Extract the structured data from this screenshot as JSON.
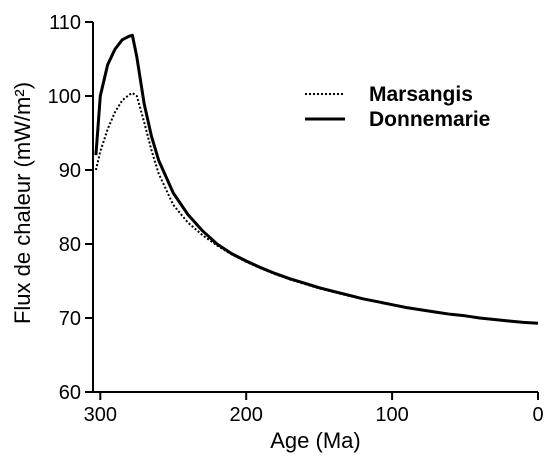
{
  "chart_data": {
    "type": "line",
    "xlabel": "Age (Ma)",
    "ylabel": "Flux de chaleur (mW/m²)",
    "xlim": [
      305,
      0
    ],
    "ylim": [
      60,
      110
    ],
    "x_ticks": [
      300,
      200,
      100,
      0
    ],
    "x_tick_labels": [
      "300",
      "200",
      "100",
      "0"
    ],
    "y_ticks": [
      60,
      70,
      80,
      90,
      100,
      110
    ],
    "y_tick_labels": [
      "60",
      "70",
      "80",
      "90",
      "100",
      "110"
    ],
    "grid": false,
    "legend_position": "top-right",
    "series": [
      {
        "name": "Marsangis",
        "line_style": "dotted",
        "color": "#000000",
        "x": [
          303,
          300,
          295,
          290,
          285,
          280,
          278,
          275,
          270,
          265,
          260,
          250,
          240,
          230,
          220,
          210,
          200,
          190,
          180,
          170,
          160,
          150,
          140,
          130,
          120,
          110,
          100,
          90,
          80,
          70,
          60,
          50,
          40,
          30,
          20,
          10,
          0
        ],
        "y": [
          90.0,
          92.5,
          95.5,
          97.8,
          99.4,
          100.2,
          100.4,
          100.0,
          96.5,
          92.7,
          89.5,
          85.3,
          82.9,
          81.2,
          79.8,
          78.6,
          77.6,
          76.7,
          75.9,
          75.2,
          74.6,
          74.0,
          73.5,
          73.0,
          72.6,
          72.2,
          71.8,
          71.4,
          71.1,
          70.8,
          70.5,
          70.3,
          70.0,
          69.8,
          69.6,
          69.4,
          69.3
        ]
      },
      {
        "name": "Donnemarie",
        "line_style": "solid",
        "color": "#000000",
        "x": [
          303,
          300,
          295,
          290,
          285,
          280,
          278,
          275,
          270,
          265,
          260,
          250,
          240,
          230,
          220,
          210,
          200,
          190,
          180,
          170,
          160,
          150,
          140,
          130,
          120,
          110,
          100,
          90,
          80,
          70,
          60,
          50,
          40,
          30,
          20,
          10,
          0
        ],
        "y": [
          92.0,
          100.0,
          104.2,
          106.3,
          107.6,
          108.1,
          108.2,
          105.3,
          99.0,
          94.6,
          91.3,
          86.9,
          84.0,
          81.8,
          80.0,
          78.7,
          77.7,
          76.8,
          76.0,
          75.3,
          74.7,
          74.1,
          73.6,
          73.1,
          72.6,
          72.2,
          71.8,
          71.4,
          71.1,
          70.8,
          70.5,
          70.3,
          70.0,
          69.8,
          69.6,
          69.4,
          69.3
        ]
      }
    ]
  }
}
